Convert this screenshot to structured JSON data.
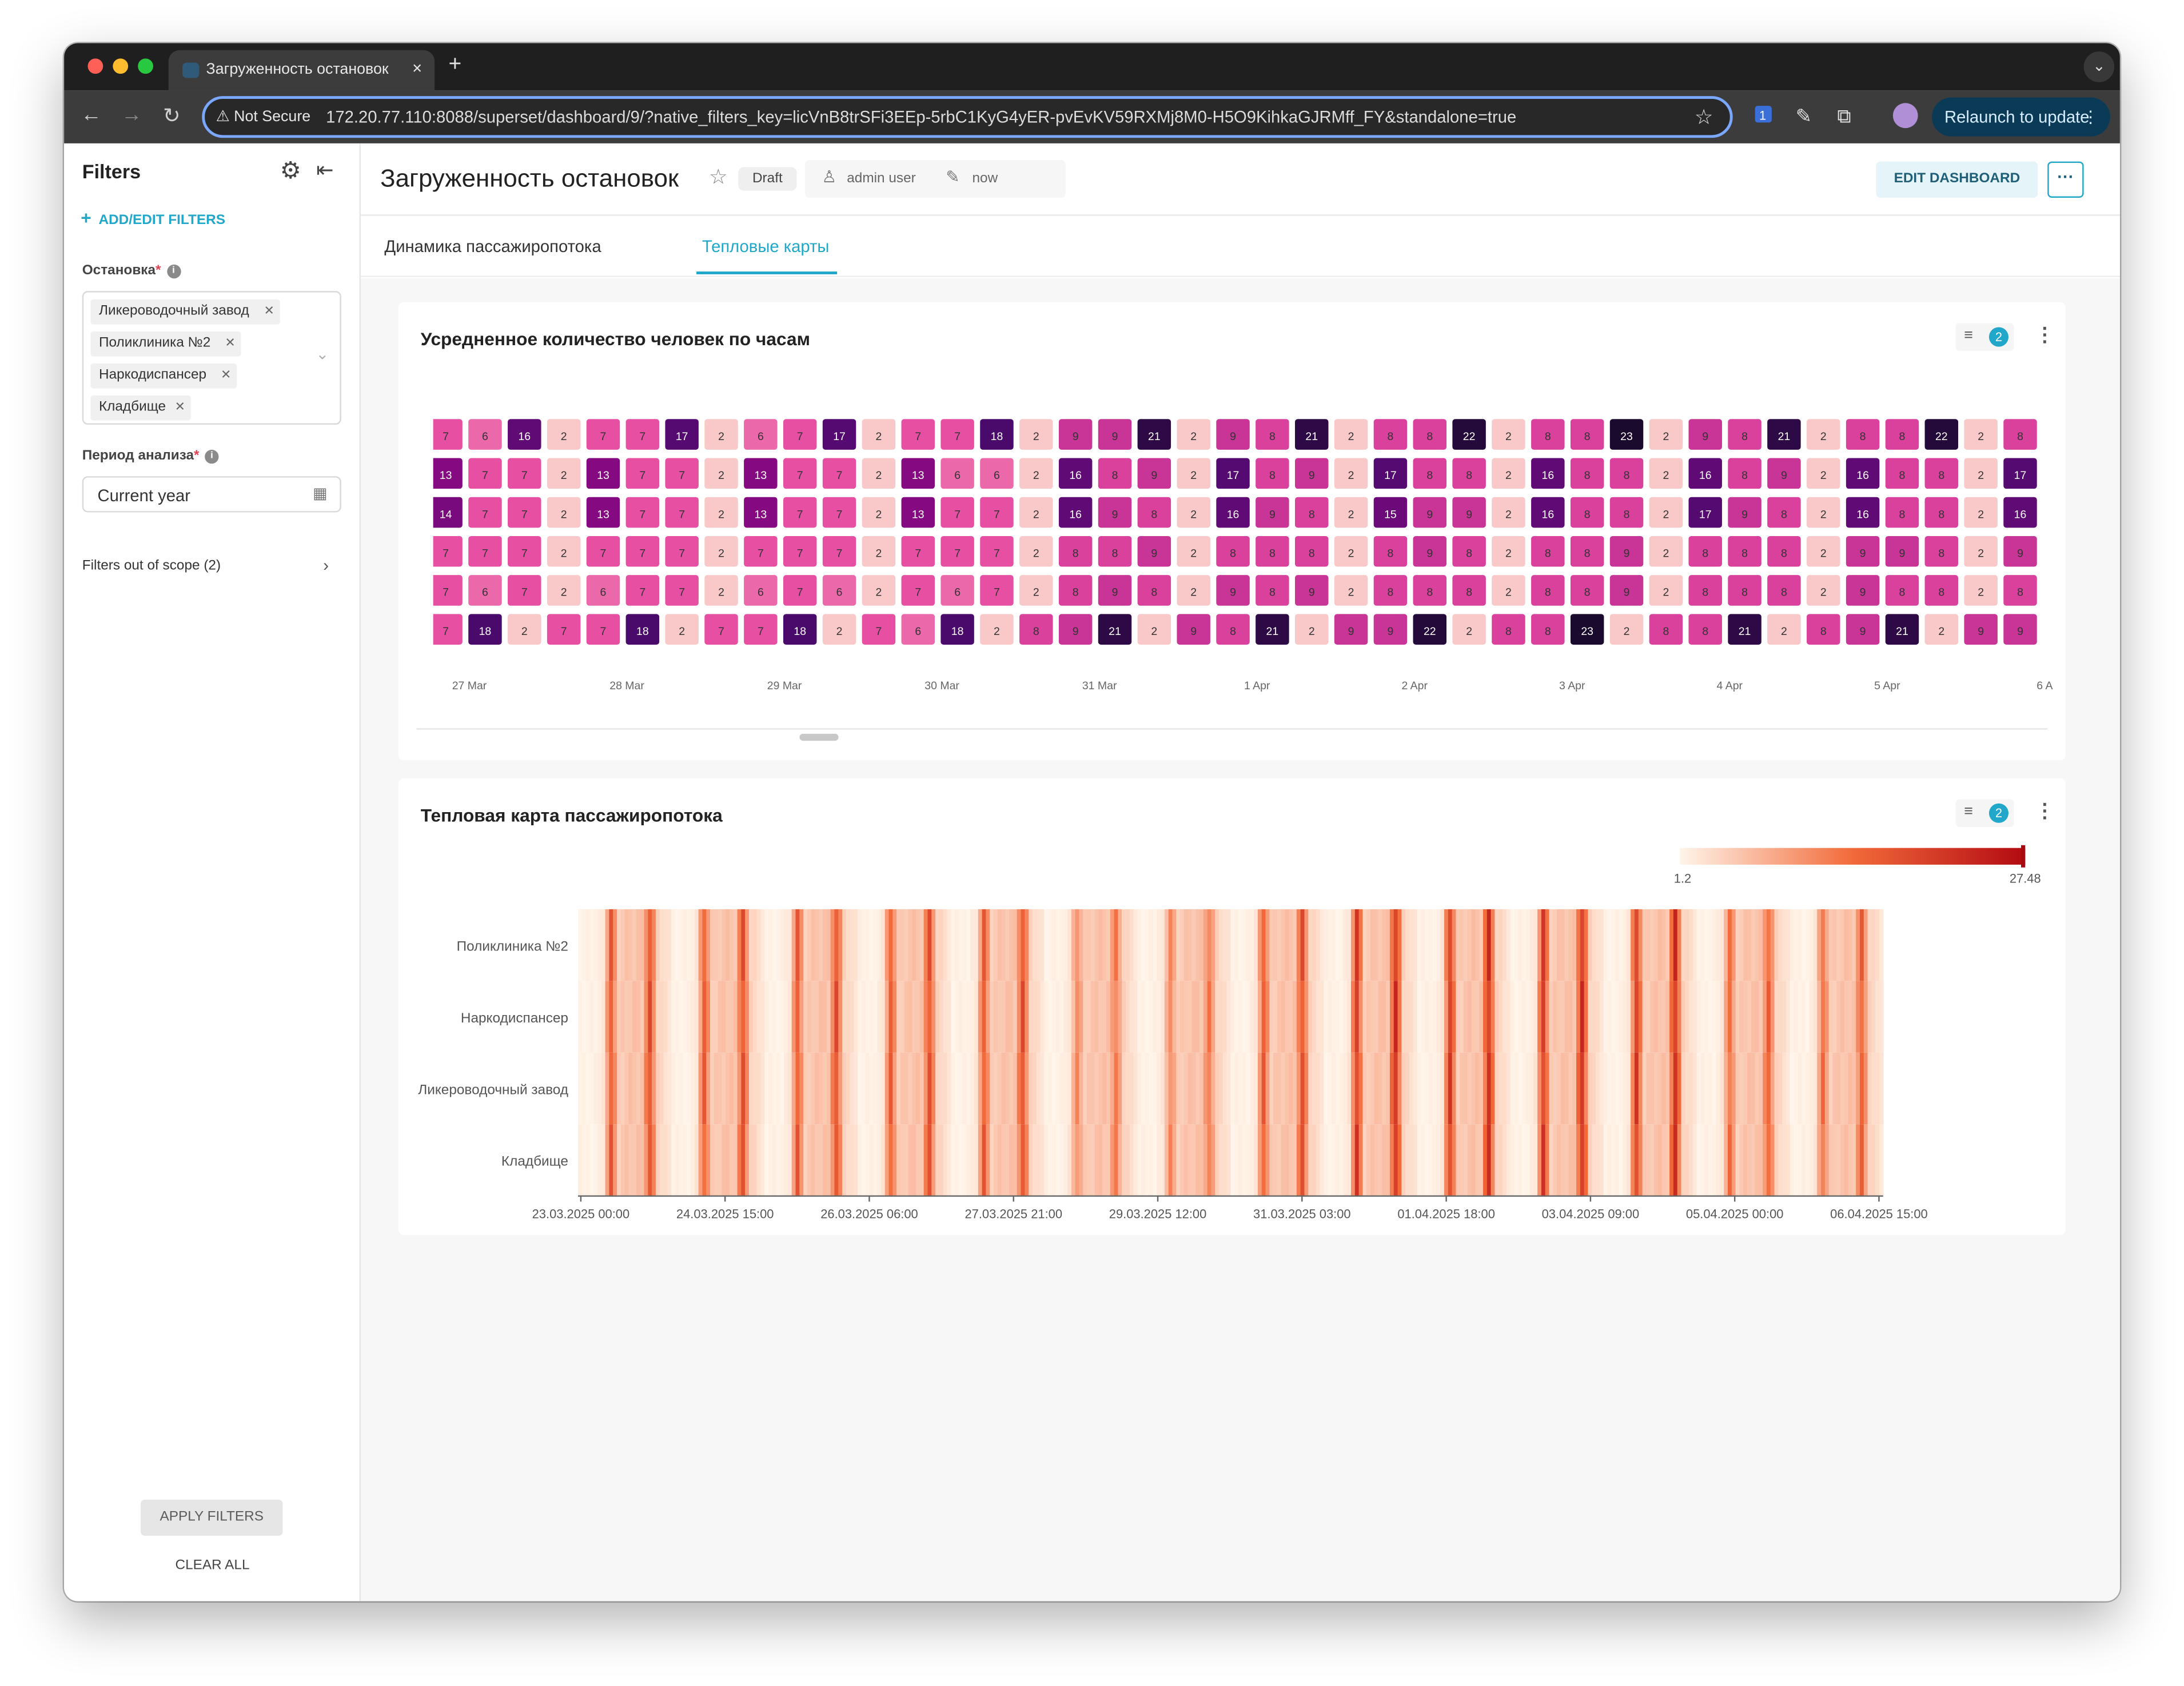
{
  "browser": {
    "tab_title": "Загруженность остановок",
    "tab_close": "×",
    "new_tab": "+",
    "not_secure": "Not Secure",
    "url": "172.20.77.110:8088/superset/dashboard/9/?native_filters_key=licVnB8trSFi3EEp-5rbC1KyG4yER-pvEvKV59RXMj8M0-H5O9KihkaGJRMff_FY&standalone=true",
    "relaunch_label": "Relaunch to update",
    "extension_badge": "1"
  },
  "sidebar": {
    "title": "Filters",
    "add_edit_label": "ADD/EDIT FILTERS",
    "filters": [
      {
        "label": "Остановка",
        "values": [
          "Ликероводочный завод",
          "Поликлиника №2",
          "Наркодиспансер",
          "Кладбище"
        ]
      },
      {
        "label": "Период анализа",
        "value": "Current year"
      }
    ],
    "out_of_scope": "Filters out of scope (2)",
    "apply_label": "APPLY FILTERS",
    "clear_label": "CLEAR ALL"
  },
  "dashboard": {
    "title": "Загруженность остановок",
    "status": "Draft",
    "owner": "admin user",
    "modified": "now",
    "edit_label": "EDIT DASHBOARD",
    "more_label": "···",
    "tabs": [
      {
        "label": "Динамика пассажиропотока",
        "active": false
      },
      {
        "label": "Тепловые карты",
        "active": true
      }
    ]
  },
  "cards": [
    {
      "title": "Усредненное количество человек по часам",
      "filter_count": "2"
    },
    {
      "title": "Тепловая карта пассажиропотока",
      "filter_count": "2"
    }
  ],
  "colors": {
    "accent": "#20a7c9",
    "purple_scale": [
      "#f9c8c8",
      "#e64aa0",
      "#8b0a84",
      "#4b0a6e",
      "#1a0a2e"
    ],
    "heat_scale": [
      "#fff5ea",
      "#f26a3a",
      "#b30a12"
    ]
  },
  "chart_data": [
    {
      "type": "heatmap",
      "title": "Усредненное количество человек по часам",
      "x_ticks": [
        "27 Mar",
        "28 Mar",
        "29 Mar",
        "30 Mar",
        "31 Mar",
        "1 Apr",
        "2 Apr",
        "3 Apr",
        "4 Apr",
        "5 Apr",
        "6 A"
      ],
      "rows": [
        [
          7,
          6,
          16,
          2,
          7,
          7,
          17,
          2,
          6,
          7,
          17,
          2,
          7,
          7,
          18,
          2,
          9,
          9,
          21,
          2,
          9,
          8,
          21,
          2,
          8,
          8,
          22,
          2,
          8,
          8,
          23,
          2,
          9,
          8,
          21,
          2,
          8,
          8,
          22,
          2,
          8
        ],
        [
          13,
          7,
          7,
          2,
          13,
          7,
          7,
          2,
          13,
          7,
          7,
          2,
          13,
          6,
          6,
          2,
          16,
          8,
          9,
          2,
          17,
          8,
          9,
          2,
          17,
          8,
          8,
          2,
          16,
          8,
          8,
          2,
          16,
          8,
          9,
          2,
          16,
          8,
          8,
          2,
          17
        ],
        [
          14,
          7,
          7,
          2,
          13,
          7,
          7,
          2,
          13,
          7,
          7,
          2,
          13,
          7,
          7,
          2,
          16,
          9,
          8,
          2,
          16,
          9,
          8,
          2,
          15,
          9,
          9,
          2,
          16,
          8,
          8,
          2,
          17,
          9,
          8,
          2,
          16,
          8,
          8,
          2,
          16
        ],
        [
          7,
          7,
          7,
          2,
          7,
          7,
          7,
          2,
          7,
          7,
          7,
          2,
          7,
          7,
          7,
          2,
          8,
          8,
          9,
          2,
          8,
          8,
          8,
          2,
          8,
          9,
          8,
          2,
          8,
          8,
          9,
          2,
          8,
          8,
          8,
          2,
          9,
          9,
          8,
          2,
          9
        ],
        [
          7,
          6,
          7,
          2,
          6,
          7,
          7,
          2,
          6,
          7,
          6,
          2,
          7,
          6,
          7,
          2,
          8,
          9,
          8,
          2,
          9,
          8,
          9,
          2,
          8,
          8,
          8,
          2,
          8,
          8,
          9,
          2,
          8,
          8,
          8,
          2,
          9,
          8,
          8,
          2,
          8
        ],
        [
          7,
          18,
          2,
          7,
          7,
          18,
          2,
          7,
          7,
          18,
          2,
          7,
          6,
          18,
          2,
          8,
          9,
          21,
          2,
          9,
          8,
          21,
          2,
          9,
          9,
          22,
          2,
          8,
          8,
          23,
          2,
          8,
          8,
          21,
          2,
          8,
          9,
          21,
          2,
          9,
          9
        ]
      ]
    },
    {
      "type": "heatmap",
      "title": "Тепловая карта пассажиропотока",
      "categories": [
        "Поликлиника №2",
        "Наркодиспансер",
        "Ликероводочный завод",
        "Кладбище"
      ],
      "x_ticks": [
        "23.03.2025 00:00",
        "24.03.2025 15:00",
        "26.03.2025 06:00",
        "27.03.2025 21:00",
        "29.03.2025 12:00",
        "31.03.2025 03:00",
        "01.04.2025 18:00",
        "03.04.2025 09:00",
        "05.04.2025 00:00",
        "06.04.2025 15:00"
      ],
      "value_range": [
        1.2,
        27.48
      ],
      "legend_min": "1.2",
      "legend_max": "27.48"
    }
  ]
}
